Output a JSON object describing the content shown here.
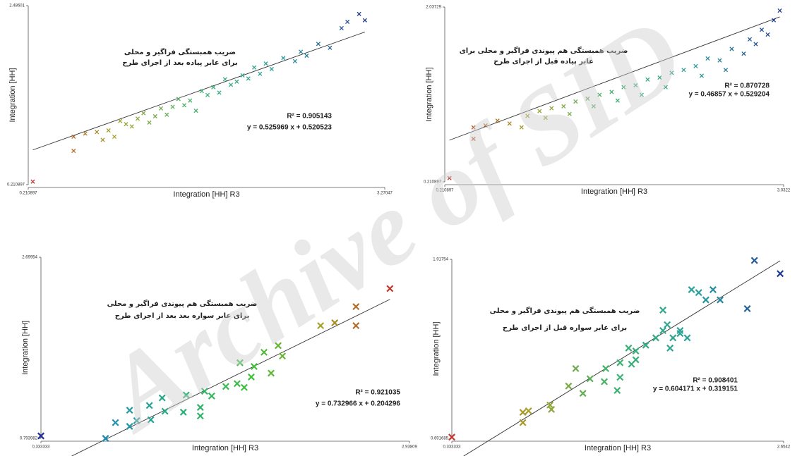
{
  "watermark": "Archive of SID",
  "chart_data": [
    {
      "type": "scatter",
      "title": [
        "ضریب همبستگی فراگیر و محلی",
        "برای عابر پیاده بعد از اجرای طرح"
      ],
      "x_label": "Integration [HH] R3",
      "y_label": "Integration [HH]",
      "xlim": [
        0.210897,
        3.27047
      ],
      "ylim": [
        0.210897,
        2.48601
      ],
      "xticks": [
        0.210897,
        3.27047
      ],
      "yticks": [
        0.210897,
        2.48601
      ],
      "colormap": [
        "#c0392b",
        "#a5a52a",
        "#3cb371",
        "#2a9d9d",
        "#1f3a93"
      ],
      "x": [
        0.6,
        0.6,
        0.7,
        0.8,
        0.85,
        0.9,
        0.95,
        1.0,
        1.05,
        1.1,
        1.15,
        1.2,
        1.25,
        1.3,
        1.35,
        1.4,
        1.45,
        1.5,
        1.55,
        1.6,
        1.65,
        1.7,
        1.75,
        1.8,
        1.85,
        1.9,
        1.95,
        2.0,
        2.05,
        2.1,
        2.15,
        2.2,
        2.25,
        2.3,
        2.4,
        2.5,
        2.55,
        2.6,
        2.7,
        2.8,
        2.9,
        2.95,
        3.05,
        3.1,
        0.25
      ],
      "y": [
        0.82,
        0.64,
        0.86,
        0.88,
        0.78,
        0.9,
        0.82,
        1.02,
        0.98,
        0.95,
        1.05,
        1.12,
        1.0,
        1.08,
        1.18,
        1.1,
        1.2,
        1.3,
        1.22,
        1.28,
        1.15,
        1.4,
        1.35,
        1.45,
        1.38,
        1.55,
        1.48,
        1.52,
        1.6,
        1.56,
        1.7,
        1.62,
        1.75,
        1.68,
        1.82,
        1.78,
        1.9,
        1.85,
        2.0,
        1.95,
        2.2,
        2.28,
        2.38,
        2.3,
        0.25
      ],
      "fit": {
        "slope": 0.525969,
        "intercept": 0.520523,
        "r2": 0.905143,
        "r2_label": "R² = 0.905143",
        "equation": "y = 0.525969 x + 0.520523"
      }
    },
    {
      "type": "scatter",
      "title": [
        "ضریب همبستگی هم پیوندی فراگیر و محلی برای",
        "عابر پیاده قبل از اجرای طرح"
      ],
      "x_label": "Integration [HH] R3",
      "y_label": "Integration [HH]",
      "xlim": [
        0.210897,
        3.0322
      ],
      "ylim": [
        0.210897,
        2.03729
      ],
      "xticks": [
        0.210897,
        3.0322
      ],
      "yticks": [
        0.210897,
        2.03729
      ],
      "colormap": [
        "#c0392b",
        "#a5a52a",
        "#3cb371",
        "#2a9d9d",
        "#1f3a93"
      ],
      "x": [
        0.45,
        0.45,
        0.55,
        0.65,
        0.75,
        0.85,
        0.9,
        1.0,
        1.05,
        1.1,
        1.2,
        1.25,
        1.3,
        1.4,
        1.45,
        1.5,
        1.6,
        1.65,
        1.7,
        1.8,
        1.85,
        1.9,
        2.0,
        2.05,
        2.1,
        2.2,
        2.3,
        2.35,
        2.4,
        2.5,
        2.55,
        2.6,
        2.7,
        2.75,
        2.8,
        2.85,
        2.9,
        2.95,
        3.0,
        0.25
      ],
      "y": [
        0.78,
        0.66,
        0.8,
        0.85,
        0.82,
        0.78,
        0.9,
        0.95,
        0.88,
        0.98,
        1.0,
        0.92,
        1.05,
        1.08,
        1.0,
        1.12,
        1.15,
        1.06,
        1.2,
        1.22,
        1.12,
        1.28,
        1.3,
        1.2,
        1.35,
        1.38,
        1.42,
        1.32,
        1.5,
        1.48,
        1.38,
        1.6,
        1.55,
        1.7,
        1.65,
        1.8,
        1.75,
        1.9,
        2.0,
        0.25
      ],
      "fit": {
        "slope": 0.46857,
        "intercept": 0.529204,
        "r2": 0.870728,
        "r2_label": "R² = 0.870728",
        "equation": "y = 0.46857 x + 0.529204"
      }
    },
    {
      "type": "scatter",
      "title": [
        "ضریب همبستگی هم پیوندی فراگیر و محلی",
        "برای عابر سواره بعد بعد از اجرای طرح"
      ],
      "x_label": "Integration [HH] R3",
      "y_label": "Integration [HH]",
      "xlim": [
        0.333333,
        2.93809
      ],
      "ylim": [
        0.793982,
        2.69954
      ],
      "xticks": [
        0.333333,
        2.93809
      ],
      "yticks": [
        0.793982,
        2.69954
      ],
      "colormap": [
        "#1f2f93",
        "#1f8fb0",
        "#2ab07a",
        "#3fbf3f",
        "#a5a52a",
        "#c0392b"
      ],
      "x": [
        0.79,
        0.86,
        0.96,
        0.96,
        1.01,
        1.1,
        1.11,
        1.21,
        1.34,
        1.46,
        1.46,
        1.36,
        1.49,
        1.54,
        1.64,
        1.72,
        1.77,
        1.82,
        1.74,
        1.84,
        1.91,
        2.01,
        2.04,
        1.96,
        2.31,
        2.41,
        2.56,
        2.56,
        2.8,
        0.333333,
        1.19
      ],
      "y": [
        0.794,
        0.96,
        0.92,
        1.09,
        0.98,
        1.14,
        0.99,
        1.08,
        1.07,
        1.03,
        1.12,
        1.25,
        1.29,
        1.24,
        1.34,
        1.37,
        1.33,
        1.44,
        1.59,
        1.55,
        1.7,
        1.77,
        1.66,
        1.48,
        1.98,
        2.01,
        2.18,
        1.98,
        2.37,
        0.82,
        1.22
      ],
      "fit": {
        "slope": 0.732966,
        "intercept": 0.204296,
        "r2": 0.921035,
        "r2_label": "R² = 0.921035",
        "equation": "y = 0.732966 x + 0.204296"
      }
    },
    {
      "type": "scatter",
      "title": [
        "ضریب همبستگی هم پیوندی فراگیر و محلی",
        "برای عابر سواره قبل از اجرای طرح"
      ],
      "x_label": "Integration [HH] R3",
      "y_label": "Integration [HH]",
      "xlim": [
        0.333333,
        2.6542
      ],
      "ylim": [
        0.691685,
        1.91754
      ],
      "xticks": [
        0.333333,
        2.6542
      ],
      "yticks": [
        0.691685,
        1.91754
      ],
      "colormap": [
        "#c0392b",
        "#a5a52a",
        "#3cb371",
        "#2aa0a0",
        "#1f3a93"
      ],
      "x": [
        0.333333,
        0.83,
        0.83,
        0.87,
        1.02,
        1.03,
        1.15,
        1.2,
        1.25,
        1.3,
        1.4,
        1.41,
        1.49,
        1.51,
        1.51,
        1.57,
        1.59,
        1.62,
        1.62,
        1.69,
        1.76,
        1.81,
        1.81,
        1.86,
        1.88,
        1.93,
        1.98,
        1.84,
        1.93,
        2.01,
        2.06,
        2.11,
        2.16,
        2.21,
        2.4,
        2.45,
        2.63
      ],
      "y": [
        0.7,
        0.8,
        0.87,
        0.88,
        0.92,
        0.89,
        1.05,
        1.17,
        1.0,
        1.1,
        1.08,
        1.17,
        1.02,
        1.11,
        1.21,
        1.31,
        1.2,
        1.23,
        1.29,
        1.33,
        1.38,
        1.43,
        1.57,
        1.31,
        1.38,
        1.43,
        1.38,
        1.47,
        1.41,
        1.71,
        1.69,
        1.64,
        1.71,
        1.64,
        1.58,
        1.91,
        1.82
      ],
      "fit": {
        "slope": 0.604171,
        "intercept": 0.319151,
        "r2": 0.908401,
        "r2_label": "R² = 0.908401",
        "equation": "y = 0.604171 x + 0.319151"
      }
    }
  ]
}
